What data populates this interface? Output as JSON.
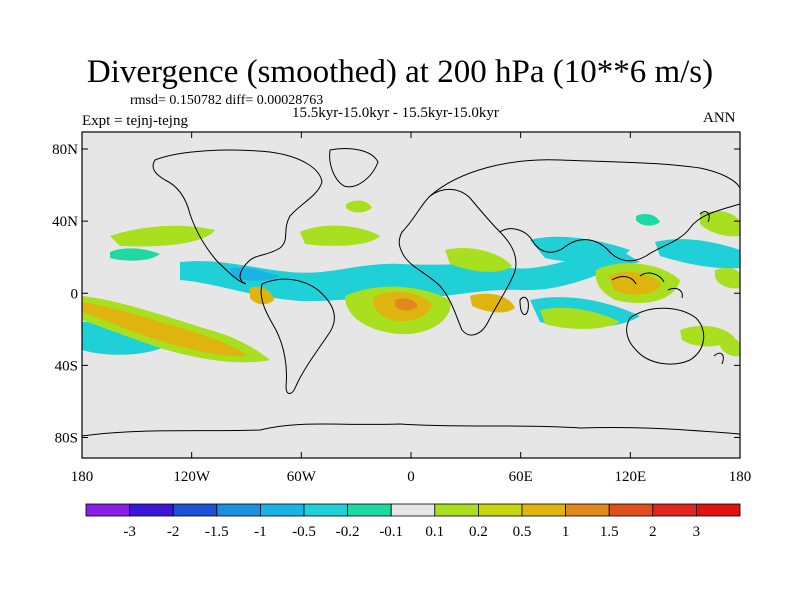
{
  "title": "Divergence (smoothed) at 200 hPa (10**6 m/s)",
  "stats": "rmsd= 0.150782 diff= 0.00028763",
  "period": "15.5kyr-15.0kyr - 15.5kyr-15.0kyr",
  "expt": "Expt = tejnj-tejng",
  "season": "ANN",
  "lat_labels": [
    "80N",
    "40N",
    "0",
    "40S",
    "80S"
  ],
  "lat_values": [
    80,
    40,
    0,
    -40,
    -80
  ],
  "lon_labels": [
    "180",
    "120W",
    "60W",
    "0",
    "60E",
    "120E",
    "180"
  ],
  "lon_values": [
    -180,
    -120,
    -60,
    0,
    60,
    120,
    180
  ],
  "colorbar": {
    "labels": [
      "-3",
      "-2",
      "-1.5",
      "-1",
      "-0.5",
      "-0.2",
      "-0.1",
      "0.1",
      "0.2",
      "0.5",
      "1",
      "1.5",
      "2",
      "3"
    ],
    "colors": [
      "#8a1fe6",
      "#3b16d6",
      "#1d52d6",
      "#1c8fe0",
      "#19b3e6",
      "#1fd0d6",
      "#1ed9a3",
      "#e6e6e6",
      "#a8e020",
      "#c8d60e",
      "#e0b40e",
      "#e08a1e",
      "#e0501e",
      "#e0281e",
      "#e0140f"
    ]
  },
  "colors": {
    "background": "#e6e6e6",
    "green": "#a8e020",
    "yellow": "#c8d60e",
    "orange": "#e0b40e",
    "darkorange": "#e08a1e",
    "cyan": "#1fd0d6",
    "teal": "#1ed9a3",
    "blue": "#19b3e6"
  }
}
